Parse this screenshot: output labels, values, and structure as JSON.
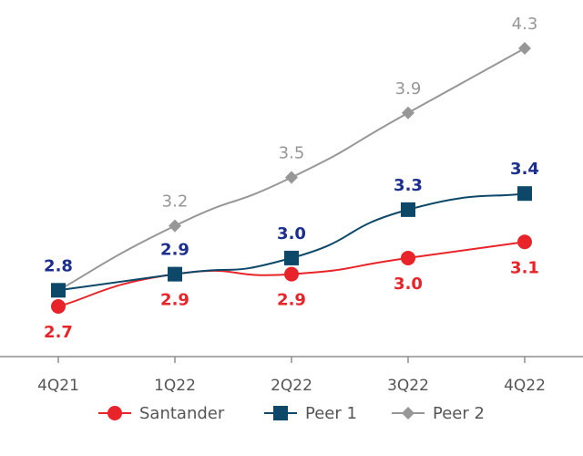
{
  "chart_data": {
    "type": "line",
    "title": "",
    "xlabel": "",
    "ylabel": "",
    "categories": [
      "4Q21",
      "1Q22",
      "2Q22",
      "3Q22",
      "4Q22"
    ],
    "ylim": [
      2.5,
      4.4
    ],
    "grid": false,
    "legend_position": "bottom",
    "series": [
      {
        "name": "Santander",
        "values": [
          2.7,
          2.9,
          2.9,
          3.0,
          3.1
        ],
        "color": "#e8242a",
        "marker": "circle",
        "label_position": "below",
        "label_bold": true,
        "labels": [
          "2.7",
          "2.9",
          "2.9",
          "3.0",
          "3.1"
        ]
      },
      {
        "name": "Peer 1",
        "values": [
          2.8,
          2.9,
          3.0,
          3.3,
          3.4
        ],
        "color": "#0d4868",
        "marker": "square",
        "label_position": "above",
        "label_color": "#1c2f8f",
        "label_bold": true,
        "labels": [
          "2.8",
          "2.9",
          "3.0",
          "3.3",
          "3.4"
        ]
      },
      {
        "name": "Peer 2",
        "values": [
          2.8,
          3.2,
          3.5,
          3.9,
          4.3
        ],
        "color": "#979797",
        "marker": "diamond",
        "label_position": "above",
        "label_bold": false,
        "labels": [
          "",
          "3.2",
          "3.5",
          "3.9",
          "4.3"
        ]
      }
    ]
  }
}
